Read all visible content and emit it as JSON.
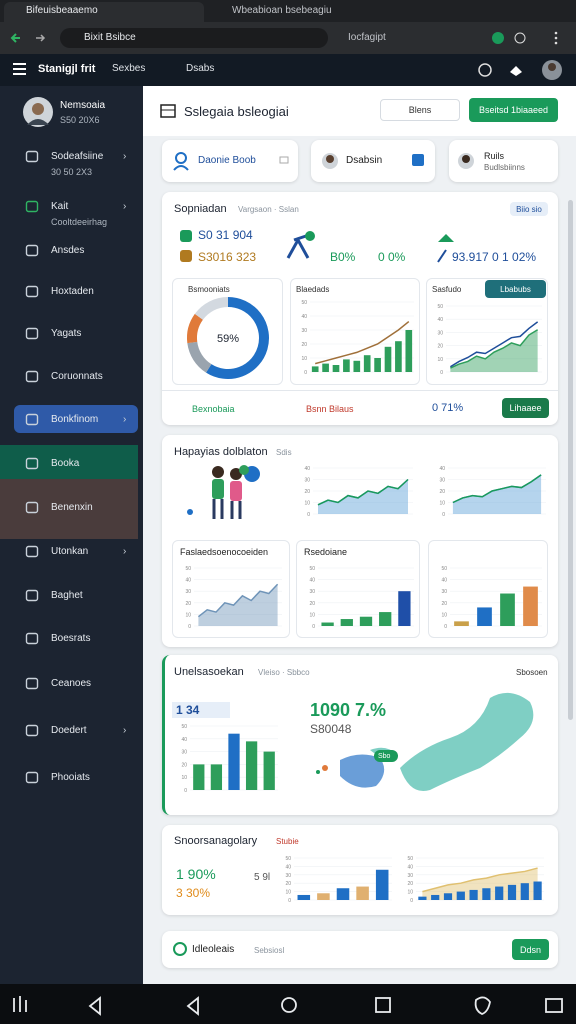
{
  "browser": {
    "tabs": [
      "Bifeuisbeaaemo",
      "Wbeabioan bsebeagiu"
    ],
    "address": "Bixit Bsibce",
    "search": "Iocfagipt"
  },
  "app_header": {
    "title": "Stanigjl frit",
    "crumbs": [
      "Sexbes",
      "Dsabs"
    ]
  },
  "sidebar": {
    "user": {
      "name": "Nemsoaia",
      "sub": "S50 20X6"
    },
    "items": [
      {
        "label": "Sodeafsiine",
        "sub": "30 50 2X3"
      },
      {
        "label": "Kait",
        "sub": "Cooltdeeirhag"
      },
      {
        "label": "Ansdes"
      },
      {
        "label": "Hoxtaden"
      },
      {
        "label": "Yagats"
      },
      {
        "label": "Coruonnats"
      },
      {
        "label": "Bonkfinom"
      },
      {
        "label": "Booka"
      },
      {
        "label": "Benenxin"
      },
      {
        "label": "Utonkan"
      },
      {
        "label": "Baghet"
      },
      {
        "label": "Boesrats"
      },
      {
        "label": "Ceanoes"
      },
      {
        "label": "Doedert"
      },
      {
        "label": "Phooiats"
      }
    ]
  },
  "header": {
    "title": "Sslegaia bsleogiai",
    "buttons": [
      "Blens",
      "Bseitsd 1biaaeed"
    ]
  },
  "quick_cards": [
    {
      "label": "Daonie Boob"
    },
    {
      "label": "Dsabsin"
    },
    {
      "label": "Ruils",
      "sub": "Budlsbiinns"
    }
  ],
  "overview": {
    "title": "Sopniadan",
    "subtitle": "Vargsaon · Sslan",
    "chip": "Biio sio",
    "kpis": [
      "S0 31 904",
      "S3016 323",
      "B0%",
      "0 0%",
      "93.917 0 1 02%"
    ],
    "donut": {
      "title": "Bsmooniats",
      "center_label": "59%",
      "values": [
        59,
        14,
        12,
        15
      ],
      "colors": [
        "#1f6fc5",
        "#9aa4ae",
        "#e07a3a",
        "#d3d9e0"
      ]
    },
    "bar_line": {
      "title": "Blaedads",
      "ylim": [
        0,
        50
      ],
      "yticks": [
        0,
        10,
        20,
        30,
        40,
        50
      ],
      "series": [
        {
          "type": "bar",
          "color": "#2e9e5b",
          "values": [
            4,
            6,
            5,
            9,
            8,
            12,
            10,
            18,
            22,
            30
          ]
        },
        {
          "type": "line",
          "color": "#a0703a",
          "values": [
            6,
            8,
            10,
            12,
            14,
            17,
            20,
            25,
            30,
            36
          ]
        }
      ]
    },
    "area": {
      "title": "Sasfudo",
      "button": "Lbabubs",
      "ylim": [
        0,
        50
      ],
      "yticks": [
        0,
        10,
        20,
        30,
        40,
        50
      ],
      "series": [
        {
          "type": "area",
          "color": "#2e9e5b",
          "values": [
            3,
            6,
            8,
            12,
            10,
            15,
            18,
            22,
            20,
            28,
            32
          ]
        },
        {
          "type": "line",
          "color": "#1f4e9a",
          "values": [
            4,
            8,
            11,
            15,
            14,
            18,
            22,
            26,
            27,
            33,
            38
          ]
        }
      ]
    },
    "footer": [
      "Bexnobaia",
      "Bsnn Bilaus",
      "0 71%"
    ],
    "footer_button": "Lihaaee"
  },
  "activity": {
    "title": "Hapayias dolblaton",
    "subtitle": "Sdis",
    "charts": [
      {
        "ylim": [
          0,
          40
        ],
        "yticks": [
          0,
          10,
          20,
          30,
          40
        ],
        "series": [
          {
            "type": "area",
            "color": "#5aa0d8",
            "values": [
              8,
              12,
              10,
              16,
              14,
              20,
              18,
              24,
              22,
              30
            ]
          },
          {
            "type": "line",
            "color": "#1a9a5a",
            "values": [
              8,
              12,
              10,
              16,
              14,
              20,
              18,
              24,
              22,
              30
            ]
          }
        ]
      },
      {
        "ylim": [
          0,
          40
        ],
        "yticks": [
          0,
          10,
          20,
          30,
          40
        ],
        "series": [
          {
            "type": "area",
            "color": "#5aa0d8",
            "values": [
              10,
              14,
              16,
              15,
              20,
              22,
              24,
              23,
              28,
              34
            ]
          },
          {
            "type": "line",
            "color": "#1a9a5a",
            "values": [
              10,
              14,
              16,
              15,
              20,
              22,
              24,
              23,
              28,
              34
            ]
          }
        ]
      }
    ],
    "panels": [
      {
        "title": "Faslaedsoenocoeiden",
        "chart": {
          "ylim": [
            0,
            50
          ],
          "yticks": [
            0,
            10,
            20,
            30,
            40,
            50
          ],
          "series": [
            {
              "type": "area",
              "color": "#6f94b8",
              "values": [
                8,
                14,
                12,
                20,
                18,
                26,
                22,
                30,
                28,
                36
              ]
            }
          ]
        }
      },
      {
        "title": "Rsedoiane",
        "chart": {
          "ylim": [
            0,
            50
          ],
          "yticks": [
            0,
            10,
            20,
            30,
            40,
            50
          ],
          "series": [
            {
              "type": "bar",
              "color": "#2e9e5b",
              "colors": [
                "#2e9e5b",
                "#2e9e5b",
                "#2e9e5b",
                "#2e9e5b",
                "#1f4fa8"
              ],
              "values": [
                3,
                6,
                8,
                12,
                30
              ]
            }
          ]
        }
      },
      {
        "chart": {
          "ylim": [
            0,
            50
          ],
          "yticks": [
            0,
            10,
            20,
            30,
            40,
            50
          ],
          "series": [
            {
              "type": "bar",
              "color": "#2e9e5b",
              "colors": [
                "#c9a04a",
                "#1f6fc5",
                "#2e9e5b",
                "#e08b4a"
              ],
              "values": [
                4,
                16,
                28,
                34
              ]
            }
          ]
        }
      }
    ]
  },
  "regional": {
    "title": "Unelsasoekan",
    "subtitle": "Vleiso · Sbbco",
    "action": "Sbosoen",
    "chart_title": "1 34",
    "big": "1090 7.%",
    "sub": "S80048",
    "map_tag": "Sbo",
    "chart": {
      "ylim": [
        0,
        50
      ],
      "yticks": [
        0,
        10,
        20,
        30,
        40,
        50
      ],
      "series": [
        {
          "type": "bar",
          "color": "#2e9e5b",
          "colors": [
            "#2e9e5b",
            "#2e9e5b",
            "#1f6fc5",
            "#2e9e5b",
            "#2e9e5b"
          ],
          "values": [
            20,
            20,
            44,
            38,
            30
          ]
        }
      ]
    }
  },
  "summary": {
    "title": "Snoorsanagolary",
    "subtitle": "Stubie",
    "kpis": [
      "1 90%",
      "3 30%"
    ],
    "note": "5 9l",
    "charts": [
      {
        "ylim": [
          0,
          50
        ],
        "yticks": [
          0,
          10,
          20,
          30,
          40,
          50
        ],
        "series": [
          {
            "type": "bar",
            "color": "#1f6fc5",
            "colors": [
              "#1f6fc5",
              "#e0b070",
              "#1f6fc5",
              "#e0b070",
              "#1f6fc5"
            ],
            "values": [
              6,
              8,
              14,
              16,
              36
            ]
          }
        ]
      },
      {
        "ylim": [
          0,
          50
        ],
        "yticks": [
          0,
          10,
          20,
          30,
          40,
          50
        ],
        "series": [
          {
            "type": "area",
            "color": "#e0c070",
            "values": [
              10,
              14,
              18,
              20,
              24,
              26,
              30,
              32,
              34,
              38
            ]
          },
          {
            "type": "bar",
            "color": "#1f6fc5",
            "values": [
              4,
              6,
              8,
              10,
              12,
              14,
              16,
              18,
              20,
              22
            ]
          }
        ]
      }
    ]
  },
  "footer_card": {
    "title": "Idleoleais",
    "subtitle": "Sebsiosl",
    "button": "Ddsn"
  }
}
